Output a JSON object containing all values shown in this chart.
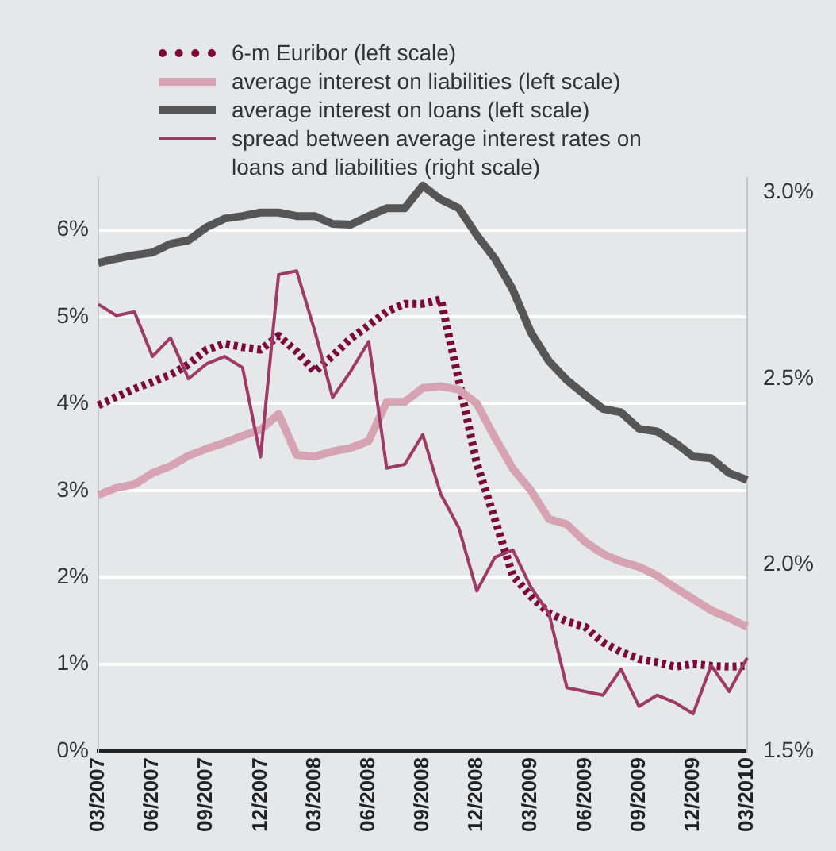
{
  "chart_data": {
    "type": "line",
    "categories": [
      "03/2007",
      null,
      null,
      "06/2007",
      null,
      null,
      "09/2007",
      null,
      null,
      "12/2007",
      null,
      null,
      "03/2008",
      null,
      null,
      "06/2008",
      null,
      null,
      "09/2008",
      null,
      null,
      "12/2008",
      null,
      null,
      "03/2009",
      null,
      null,
      "06/2009",
      null,
      null,
      "09/2009",
      null,
      null,
      "12/2009",
      null,
      null,
      "03/2010"
    ],
    "series": [
      {
        "name": "6-m Euribor (left scale)",
        "color": "#7a0a3a",
        "line_style": "dotted",
        "values": [
          3.98,
          4.08,
          4.17,
          4.25,
          4.33,
          4.45,
          4.62,
          4.69,
          4.65,
          4.62,
          4.78,
          4.6,
          4.37,
          4.55,
          4.75,
          4.9,
          5.06,
          5.15,
          5.15,
          5.2,
          4.27,
          3.31,
          2.67,
          2.02,
          1.78,
          1.59,
          1.49,
          1.43,
          1.25,
          1.14,
          1.06,
          1.02,
          0.97,
          1.0,
          0.98,
          0.97,
          0.98
        ]
      },
      {
        "name": "average interest on liabilities (left scale)",
        "color": "#d6a3b3",
        "line_style": "solid",
        "values": [
          2.95,
          3.03,
          3.07,
          3.2,
          3.28,
          3.4,
          3.48,
          3.55,
          3.63,
          3.7,
          3.88,
          3.41,
          3.39,
          3.45,
          3.49,
          3.57,
          4.02,
          4.02,
          4.18,
          4.2,
          4.16,
          4.0,
          3.61,
          3.25,
          3.0,
          2.67,
          2.61,
          2.41,
          2.27,
          2.18,
          2.12,
          2.02,
          1.88,
          1.75,
          1.62,
          1.53,
          1.43
        ]
      },
      {
        "name": "average interest on loans (left scale)",
        "color": "#565656",
        "line_style": "solid",
        "values": [
          5.62,
          5.67,
          5.71,
          5.74,
          5.84,
          5.88,
          6.03,
          6.13,
          6.16,
          6.2,
          6.2,
          6.16,
          6.16,
          6.07,
          6.06,
          6.16,
          6.25,
          6.25,
          6.51,
          6.35,
          6.25,
          5.94,
          5.67,
          5.31,
          4.82,
          4.49,
          4.27,
          4.1,
          3.94,
          3.9,
          3.71,
          3.68,
          3.55,
          3.39,
          3.37,
          3.2,
          3.12
        ]
      },
      {
        "name": "spread between average interest rates on loans and liabilities (right scale)",
        "color": "#9b3b66",
        "line_style": "solid",
        "axis": "y2",
        "values": [
          2.7,
          2.67,
          2.68,
          2.56,
          2.61,
          2.5,
          2.54,
          2.56,
          2.53,
          2.29,
          2.78,
          2.79,
          2.63,
          2.45,
          2.52,
          2.6,
          2.26,
          2.27,
          2.35,
          2.19,
          2.1,
          1.93,
          2.02,
          2.04,
          1.94,
          1.87,
          1.67,
          1.66,
          1.65,
          1.72,
          1.62,
          1.65,
          1.63,
          1.6,
          1.73,
          1.66,
          1.75
        ]
      }
    ],
    "ylim": [
      0,
      6.6
    ],
    "yticks": [
      {
        "value": 0,
        "label": "0%"
      },
      {
        "value": 1,
        "label": "1%"
      },
      {
        "value": 2,
        "label": "2%"
      },
      {
        "value": 3,
        "label": "3%"
      },
      {
        "value": 4,
        "label": "4%"
      },
      {
        "value": 5,
        "label": "5%"
      },
      {
        "value": 6,
        "label": "6%"
      }
    ],
    "y2lim": [
      1.5,
      3.04
    ],
    "y2ticks": [
      {
        "value": 1.5,
        "label": "1.5%"
      },
      {
        "value": 2,
        "label": "2.0%"
      },
      {
        "value": 2.5,
        "label": "2.5%"
      },
      {
        "value": 3,
        "label": "3.0%"
      }
    ],
    "grid": "y",
    "legend": "top"
  }
}
